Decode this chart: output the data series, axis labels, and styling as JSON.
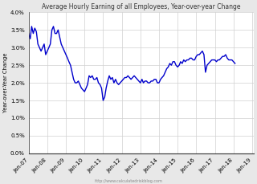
{
  "title": "Average Hourly Earning of all Employees, Year-over-year Change",
  "ylabel": "Year-over-Year Change",
  "watermark": "http://www.calculatedriskblog.com",
  "line_color": "#0000cc",
  "background_color": "#e8e8e8",
  "plot_background": "#ffffff",
  "grid_color": "#d0d0d0",
  "ylim": [
    0.0,
    0.04
  ],
  "yticks": [
    0.0,
    0.005,
    0.01,
    0.015,
    0.02,
    0.025,
    0.03,
    0.035,
    0.04
  ],
  "ytick_labels": [
    "0.0%",
    "0.5%",
    "1.0%",
    "1.5%",
    "2.0%",
    "2.5%",
    "3.0%",
    "3.5%",
    "4.0%"
  ],
  "xtick_labels": [
    "Jan-07",
    "Jan-08",
    "Jan-09",
    "Jan-10",
    "Jan-11",
    "Jan-12",
    "Jan-13",
    "Jan-14",
    "Jan-15",
    "Jan-16",
    "Jan-17",
    "Jan-18",
    "Jan-19"
  ],
  "data": [
    0.034,
    0.0325,
    0.036,
    0.034,
    0.0355,
    0.0345,
    0.031,
    0.03,
    0.029,
    0.03,
    0.031,
    0.028,
    0.029,
    0.03,
    0.031,
    0.035,
    0.036,
    0.034,
    0.034,
    0.035,
    0.033,
    0.031,
    0.03,
    0.029,
    0.028,
    0.027,
    0.026,
    0.025,
    0.023,
    0.021,
    0.02,
    0.02,
    0.0205,
    0.0195,
    0.0185,
    0.018,
    0.0175,
    0.0185,
    0.0195,
    0.022,
    0.0215,
    0.022,
    0.021,
    0.021,
    0.0215,
    0.02,
    0.0195,
    0.0185,
    0.015,
    0.016,
    0.0185,
    0.0205,
    0.022,
    0.021,
    0.0215,
    0.02,
    0.021,
    0.02,
    0.0195,
    0.02,
    0.0205,
    0.021,
    0.0215,
    0.0215,
    0.022,
    0.0215,
    0.021,
    0.0215,
    0.022,
    0.0215,
    0.021,
    0.0205,
    0.02,
    0.021,
    0.02,
    0.0205,
    0.0205,
    0.02,
    0.02,
    0.0205,
    0.0205,
    0.021,
    0.021,
    0.02,
    0.02,
    0.021,
    0.0215,
    0.022,
    0.023,
    0.024,
    0.0245,
    0.0255,
    0.025,
    0.026,
    0.026,
    0.025,
    0.0245,
    0.025,
    0.026,
    0.0255,
    0.0265,
    0.026,
    0.0265,
    0.0265,
    0.027,
    0.027,
    0.0265,
    0.0265,
    0.0275,
    0.028,
    0.028,
    0.0285,
    0.029,
    0.028,
    0.023,
    0.025,
    0.0255,
    0.026,
    0.0265,
    0.0265,
    0.0265,
    0.026,
    0.0265,
    0.0265,
    0.027,
    0.0275,
    0.0275,
    0.028,
    0.027,
    0.0265,
    0.0265,
    0.0265,
    0.026,
    0.0255
  ]
}
